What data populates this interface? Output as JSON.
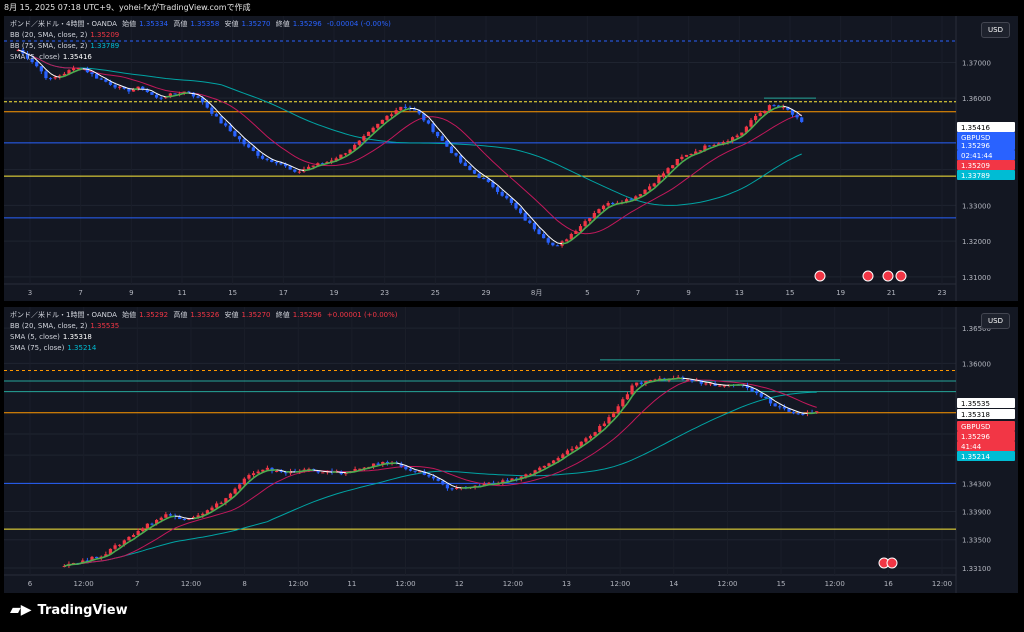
{
  "header": {
    "text": "8月 15, 2025 07:18 UTC+9、yohei-fxがTradingView.comで作成"
  },
  "footer": {
    "brand": "TradingView"
  },
  "panes": [
    {
      "currency": "USD",
      "legend": {
        "symbol": "ポンド／米ドル・4時間・OANDA",
        "o_label": "始値",
        "o": "1.35334",
        "h_label": "高値",
        "h": "1.35358",
        "l_label": "安値",
        "l": "1.35270",
        "c_label": "終値",
        "c": "1.35296",
        "chg": "-0.00004 (-0.00%)",
        "ind1": "BB (20, SMA, close, 2)",
        "ind1_val": "1.35209",
        "ind2": "BB (75, SMA, close, 2)",
        "ind2_val": "1.33789",
        "ind3": "SMA (5, close)",
        "ind3_val": "1.35416"
      },
      "y_ticks": [
        "1.37000",
        "1.36000",
        "1.34000",
        "1.33000",
        "1.32000",
        "1.31000"
      ],
      "x_ticks": [
        "3",
        "7",
        "9",
        "11",
        "15",
        "17",
        "19",
        "23",
        "25",
        "29",
        "8月",
        "5",
        "7",
        "9",
        "13",
        "15",
        "19",
        "21",
        "23"
      ],
      "price_labels": [
        {
          "text": "1.35416",
          "color": "#ffffff"
        },
        {
          "text": "GBPUSD",
          "color": "#2962ff"
        },
        {
          "text": "1.35296",
          "color": "#2962ff"
        },
        {
          "text": "02:41:44",
          "color": "#2962ff"
        },
        {
          "text": "1.35209",
          "color": "#f23645"
        },
        {
          "text": "1.33789",
          "color": "#00bcd4"
        }
      ]
    },
    {
      "currency": "USD",
      "legend": {
        "symbol": "ポンド／米ドル・1時間・OANDA",
        "o_label": "始値",
        "o": "1.35292",
        "h_label": "高値",
        "h": "1.35326",
        "l_label": "安値",
        "l": "1.35270",
        "c_label": "終値",
        "c": "1.35296",
        "chg": "+0.00001 (+0.00%)",
        "ind1": "BB (20, SMA, close, 2)",
        "ind1_val": "1.35535",
        "ind2": "SMA (5, close)",
        "ind2_val": "1.35318",
        "ind3": "SMA (75, close)",
        "ind3_val": "1.35214"
      },
      "y_ticks": [
        "1.36500",
        "1.36000",
        "1.35000",
        "1.34700",
        "1.34300",
        "1.33900",
        "1.33500",
        "1.33100"
      ],
      "x_ticks": [
        "6",
        "12:00",
        "7",
        "12:00",
        "8",
        "12:00",
        "11",
        "12:00",
        "12",
        "12:00",
        "13",
        "12:00",
        "14",
        "12:00",
        "15",
        "12:00",
        "16",
        "12:00"
      ],
      "price_labels": [
        {
          "text": "1.35535",
          "color": "#ffffff"
        },
        {
          "text": "1.35318",
          "color": "#ffffff"
        },
        {
          "text": "GBPUSD",
          "color": "#f23645"
        },
        {
          "text": "1.35296",
          "color": "#f23645"
        },
        {
          "text": "41:44",
          "color": "#f23645"
        },
        {
          "text": "1.35214",
          "color": "#00bcd4"
        }
      ]
    }
  ],
  "chart_data": [
    {
      "type": "candlestick",
      "title": "ポンド／米ドル・4時間・OANDA",
      "ylim": [
        1.308,
        1.383
      ],
      "close_path": [
        1.3735,
        1.37,
        1.365,
        1.367,
        1.369,
        1.366,
        1.364,
        1.362,
        1.363,
        1.36,
        1.361,
        1.362,
        1.359,
        1.354,
        1.35,
        1.346,
        1.343,
        1.342,
        1.339,
        1.341,
        1.342,
        1.344,
        1.347,
        1.351,
        1.355,
        1.358,
        1.356,
        1.351,
        1.346,
        1.341,
        1.338,
        1.335,
        1.331,
        1.326,
        1.322,
        1.318,
        1.322,
        1.326,
        1.33,
        1.331,
        1.332,
        1.335,
        1.339,
        1.343,
        1.345,
        1.347,
        1.348,
        1.35,
        1.355,
        1.358,
        1.357,
        1.353
      ],
      "horizontal_lines": [
        1.376,
        1.359,
        1.3562,
        1.3475,
        1.3382,
        1.3265,
        1.36
      ]
    },
    {
      "type": "candlestick",
      "title": "ポンド／米ドル・1時間・OANDA",
      "ylim": [
        1.33,
        1.368
      ],
      "close_path": [
        1.3315,
        1.332,
        1.333,
        1.335,
        1.337,
        1.3385,
        1.338,
        1.339,
        1.341,
        1.344,
        1.345,
        1.3445,
        1.345,
        1.3445,
        1.3445,
        1.3455,
        1.346,
        1.345,
        1.344,
        1.342,
        1.3425,
        1.343,
        1.3435,
        1.3445,
        1.346,
        1.348,
        1.35,
        1.353,
        1.357,
        1.3575,
        1.358,
        1.3575,
        1.357,
        1.3572,
        1.356,
        1.354,
        1.353,
        1.353
      ],
      "horizontal_lines": [
        1.359,
        1.3575,
        1.356,
        1.353,
        1.343,
        1.3365,
        1.3605
      ]
    }
  ]
}
